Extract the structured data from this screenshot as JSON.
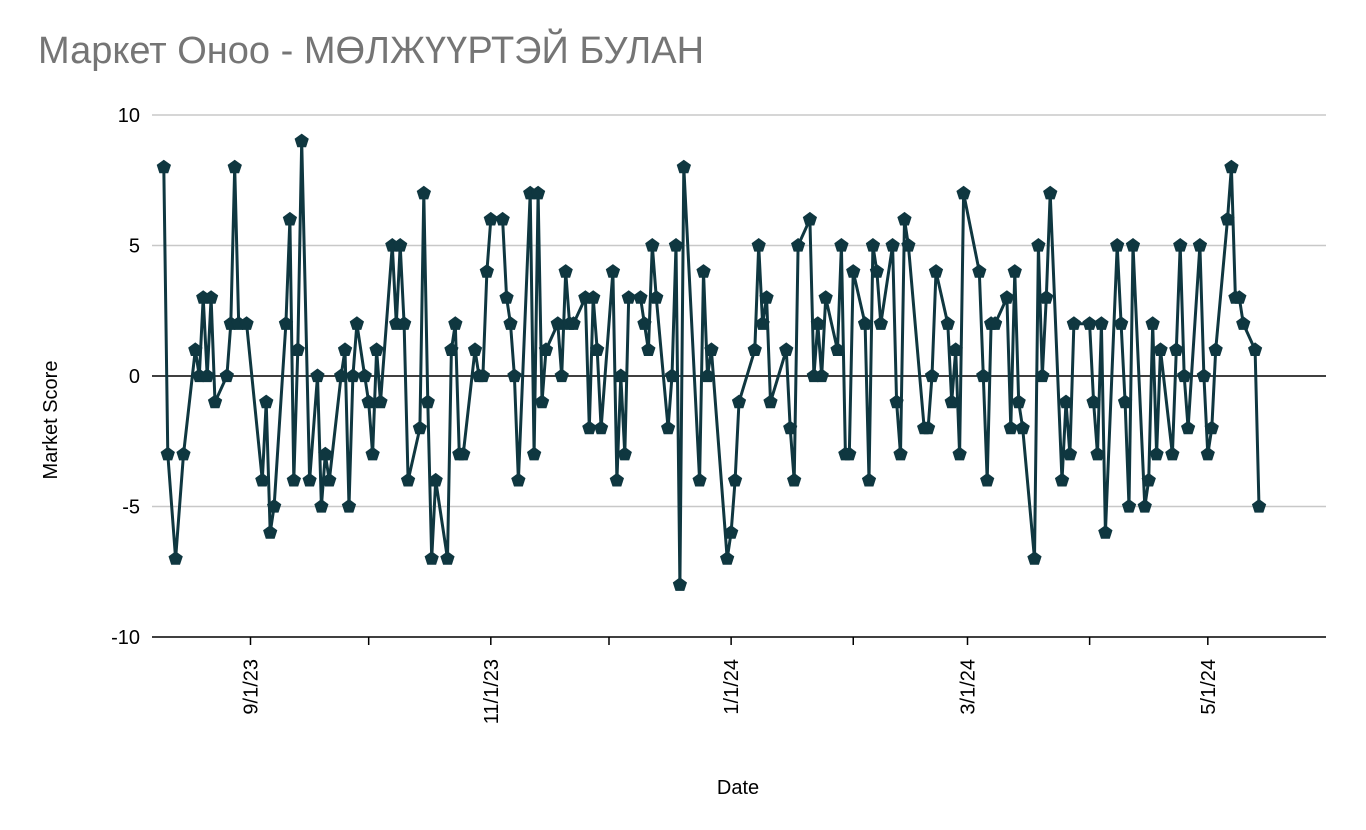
{
  "chart_data": {
    "type": "line",
    "title": "Маркет Оноо - МӨЛЖҮҮРТЭЙ БУЛАН",
    "xlabel": "Date",
    "ylabel": "Market Score",
    "ylim": [
      -10,
      10
    ],
    "yticks": [
      "-10",
      "-5",
      "0",
      "5",
      "10"
    ],
    "xlim": [
      "2023-08-07",
      "2024-05-31"
    ],
    "xtick_labels": [
      {
        "date": "2023-09-01",
        "label": "9/1/23"
      },
      {
        "date": "2023-11-01",
        "label": "11/1/23"
      },
      {
        "date": "2024-01-01",
        "label": "1/1/24"
      },
      {
        "date": "2024-03-01",
        "label": "3/1/24"
      },
      {
        "date": "2024-05-01",
        "label": "5/1/24"
      }
    ],
    "minor_tick_dates": [
      "2023-10-01",
      "2023-12-01",
      "2024-02-01",
      "2024-04-01"
    ],
    "grid": true,
    "colors": {
      "line": "#0f3740",
      "grid": "#c8c8c8",
      "axis": "#000000",
      "title": "#757575"
    },
    "series": [
      {
        "marker": "pentagon",
        "points": [
          [
            "2023-08-10",
            8
          ],
          [
            "2023-08-11",
            -3
          ],
          [
            "2023-08-13",
            -7
          ],
          [
            "2023-08-15",
            -3
          ],
          [
            "2023-08-18",
            1
          ],
          [
            "2023-08-19",
            0
          ],
          [
            "2023-08-20",
            3
          ],
          [
            "2023-08-21",
            0
          ],
          [
            "2023-08-22",
            3
          ],
          [
            "2023-08-23",
            -1
          ],
          [
            "2023-08-26",
            0
          ],
          [
            "2023-08-27",
            2
          ],
          [
            "2023-08-28",
            8
          ],
          [
            "2023-08-29",
            2
          ],
          [
            "2023-08-31",
            2
          ],
          [
            "2023-09-04",
            -4
          ],
          [
            "2023-09-05",
            -1
          ],
          [
            "2023-09-06",
            -6
          ],
          [
            "2023-09-07",
            -5
          ],
          [
            "2023-09-10",
            2
          ],
          [
            "2023-09-11",
            6
          ],
          [
            "2023-09-12",
            -4
          ],
          [
            "2023-09-13",
            1
          ],
          [
            "2023-09-14",
            9
          ],
          [
            "2023-09-16",
            -4
          ],
          [
            "2023-09-18",
            0
          ],
          [
            "2023-09-19",
            -5
          ],
          [
            "2023-09-20",
            -3
          ],
          [
            "2023-09-21",
            -4
          ],
          [
            "2023-09-24",
            0
          ],
          [
            "2023-09-25",
            1
          ],
          [
            "2023-09-26",
            -5
          ],
          [
            "2023-09-27",
            0
          ],
          [
            "2023-09-28",
            2
          ],
          [
            "2023-09-30",
            0
          ],
          [
            "2023-10-01",
            -1
          ],
          [
            "2023-10-02",
            -3
          ],
          [
            "2023-10-03",
            1
          ],
          [
            "2023-10-04",
            -1
          ],
          [
            "2023-10-07",
            5
          ],
          [
            "2023-10-08",
            2
          ],
          [
            "2023-10-09",
            5
          ],
          [
            "2023-10-10",
            2
          ],
          [
            "2023-10-11",
            -4
          ],
          [
            "2023-10-14",
            -2
          ],
          [
            "2023-10-15",
            7
          ],
          [
            "2023-10-16",
            -1
          ],
          [
            "2023-10-17",
            -7
          ],
          [
            "2023-10-18",
            -4
          ],
          [
            "2023-10-21",
            -7
          ],
          [
            "2023-10-22",
            1
          ],
          [
            "2023-10-23",
            2
          ],
          [
            "2023-10-24",
            -3
          ],
          [
            "2023-10-25",
            -3
          ],
          [
            "2023-10-28",
            1
          ],
          [
            "2023-10-29",
            0
          ],
          [
            "2023-10-30",
            0
          ],
          [
            "2023-10-31",
            4
          ],
          [
            "2023-11-01",
            6
          ],
          [
            "2023-11-04",
            6
          ],
          [
            "2023-11-05",
            3
          ],
          [
            "2023-11-06",
            2
          ],
          [
            "2023-11-07",
            0
          ],
          [
            "2023-11-08",
            -4
          ],
          [
            "2023-11-11",
            7
          ],
          [
            "2023-11-12",
            -3
          ],
          [
            "2023-11-13",
            7
          ],
          [
            "2023-11-14",
            -1
          ],
          [
            "2023-11-15",
            1
          ],
          [
            "2023-11-18",
            2
          ],
          [
            "2023-11-19",
            0
          ],
          [
            "2023-11-20",
            4
          ],
          [
            "2023-11-21",
            2
          ],
          [
            "2023-11-22",
            2
          ],
          [
            "2023-11-25",
            3
          ],
          [
            "2023-11-26",
            -2
          ],
          [
            "2023-11-27",
            3
          ],
          [
            "2023-11-28",
            1
          ],
          [
            "2023-11-29",
            -2
          ],
          [
            "2023-12-02",
            4
          ],
          [
            "2023-12-03",
            -4
          ],
          [
            "2023-12-04",
            0
          ],
          [
            "2023-12-05",
            -3
          ],
          [
            "2023-12-06",
            3
          ],
          [
            "2023-12-09",
            3
          ],
          [
            "2023-12-10",
            2
          ],
          [
            "2023-12-11",
            1
          ],
          [
            "2023-12-12",
            5
          ],
          [
            "2023-12-13",
            3
          ],
          [
            "2023-12-16",
            -2
          ],
          [
            "2023-12-17",
            0
          ],
          [
            "2023-12-18",
            5
          ],
          [
            "2023-12-19",
            -8
          ],
          [
            "2023-12-20",
            8
          ],
          [
            "2023-12-24",
            -4
          ],
          [
            "2023-12-25",
            4
          ],
          [
            "2023-12-26",
            0
          ],
          [
            "2023-12-27",
            1
          ],
          [
            "2023-12-31",
            -7
          ],
          [
            "2024-01-01",
            -6
          ],
          [
            "2024-01-02",
            -4
          ],
          [
            "2024-01-03",
            -1
          ],
          [
            "2024-01-07",
            1
          ],
          [
            "2024-01-08",
            5
          ],
          [
            "2024-01-09",
            2
          ],
          [
            "2024-01-10",
            3
          ],
          [
            "2024-01-11",
            -1
          ],
          [
            "2024-01-15",
            1
          ],
          [
            "2024-01-16",
            -2
          ],
          [
            "2024-01-17",
            -4
          ],
          [
            "2024-01-18",
            5
          ],
          [
            "2024-01-21",
            6
          ],
          [
            "2024-01-22",
            0
          ],
          [
            "2024-01-23",
            2
          ],
          [
            "2024-01-24",
            0
          ],
          [
            "2024-01-25",
            3
          ],
          [
            "2024-01-28",
            1
          ],
          [
            "2024-01-29",
            5
          ],
          [
            "2024-01-30",
            -3
          ],
          [
            "2024-01-31",
            -3
          ],
          [
            "2024-02-01",
            4
          ],
          [
            "2024-02-04",
            2
          ],
          [
            "2024-02-05",
            -4
          ],
          [
            "2024-02-06",
            5
          ],
          [
            "2024-02-07",
            4
          ],
          [
            "2024-02-08",
            2
          ],
          [
            "2024-02-11",
            5
          ],
          [
            "2024-02-12",
            -1
          ],
          [
            "2024-02-13",
            -3
          ],
          [
            "2024-02-14",
            6
          ],
          [
            "2024-02-15",
            5
          ],
          [
            "2024-02-19",
            -2
          ],
          [
            "2024-02-20",
            -2
          ],
          [
            "2024-02-21",
            0
          ],
          [
            "2024-02-22",
            4
          ],
          [
            "2024-02-25",
            2
          ],
          [
            "2024-02-26",
            -1
          ],
          [
            "2024-02-27",
            1
          ],
          [
            "2024-02-28",
            -3
          ],
          [
            "2024-02-29",
            7
          ],
          [
            "2024-03-04",
            4
          ],
          [
            "2024-03-05",
            0
          ],
          [
            "2024-03-06",
            -4
          ],
          [
            "2024-03-07",
            2
          ],
          [
            "2024-03-08",
            2
          ],
          [
            "2024-03-11",
            3
          ],
          [
            "2024-03-12",
            -2
          ],
          [
            "2024-03-13",
            4
          ],
          [
            "2024-03-14",
            -1
          ],
          [
            "2024-03-15",
            -2
          ],
          [
            "2024-03-18",
            -7
          ],
          [
            "2024-03-19",
            5
          ],
          [
            "2024-03-20",
            0
          ],
          [
            "2024-03-21",
            3
          ],
          [
            "2024-03-22",
            7
          ],
          [
            "2024-03-25",
            -4
          ],
          [
            "2024-03-26",
            -1
          ],
          [
            "2024-03-27",
            -3
          ],
          [
            "2024-03-28",
            2
          ],
          [
            "2024-04-01",
            2
          ],
          [
            "2024-04-02",
            -1
          ],
          [
            "2024-04-03",
            -3
          ],
          [
            "2024-04-04",
            2
          ],
          [
            "2024-04-05",
            -6
          ],
          [
            "2024-04-08",
            5
          ],
          [
            "2024-04-09",
            2
          ],
          [
            "2024-04-10",
            -1
          ],
          [
            "2024-04-11",
            -5
          ],
          [
            "2024-04-12",
            5
          ],
          [
            "2024-04-15",
            -5
          ],
          [
            "2024-04-16",
            -4
          ],
          [
            "2024-04-17",
            2
          ],
          [
            "2024-04-18",
            -3
          ],
          [
            "2024-04-19",
            1
          ],
          [
            "2024-04-22",
            -3
          ],
          [
            "2024-04-23",
            1
          ],
          [
            "2024-04-24",
            5
          ],
          [
            "2024-04-25",
            0
          ],
          [
            "2024-04-26",
            -2
          ],
          [
            "2024-04-29",
            5
          ],
          [
            "2024-04-30",
            0
          ],
          [
            "2024-05-01",
            -3
          ],
          [
            "2024-05-02",
            -2
          ],
          [
            "2024-05-03",
            1
          ],
          [
            "2024-05-06",
            6
          ],
          [
            "2024-05-07",
            8
          ],
          [
            "2024-05-08",
            3
          ],
          [
            "2024-05-09",
            3
          ],
          [
            "2024-05-10",
            2
          ],
          [
            "2024-05-13",
            1
          ],
          [
            "2024-05-14",
            -5
          ]
        ]
      }
    ]
  }
}
